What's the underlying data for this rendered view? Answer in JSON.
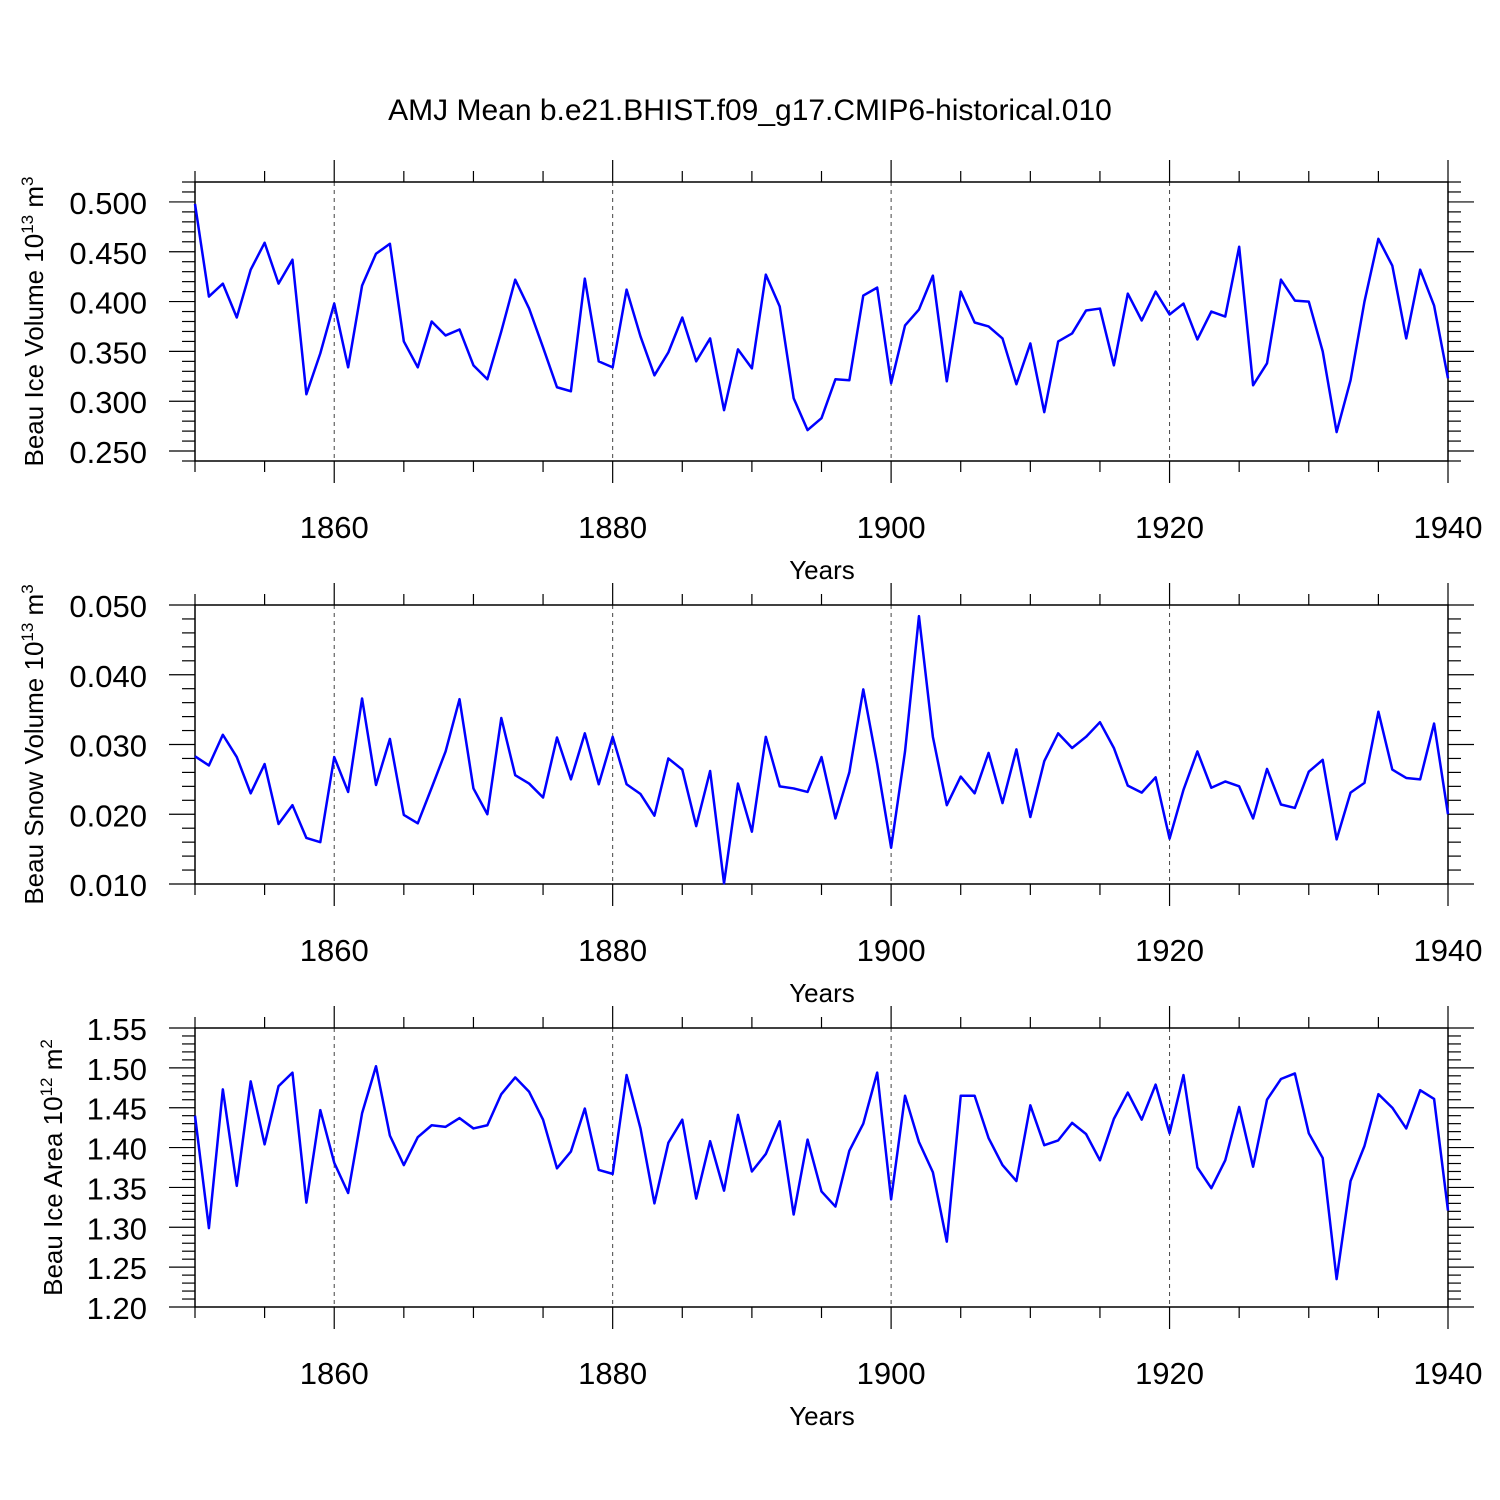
{
  "title": "AMJ Mean b.e21.BHIST.f09_g17.CMIP6-historical.010",
  "line_color": "#0000ff",
  "chart_data": [
    {
      "type": "line",
      "ylabel_main": "Beau Ice Volume 10",
      "ylabel_exp": "13",
      "ylabel_unit": " m",
      "ylabel_unit_exp": "3",
      "xlabel": "Years",
      "xlim": [
        1850,
        1940
      ],
      "ylim": [
        0.24,
        0.52
      ],
      "yticks": [
        0.25,
        0.3,
        0.35,
        0.4,
        0.45,
        0.5
      ],
      "ytick_labels": [
        "0.250",
        "0.300",
        "0.350",
        "0.400",
        "0.450",
        "0.500"
      ],
      "xticks": [
        1860,
        1880,
        1900,
        1920,
        1940
      ],
      "xtick_labels": [
        "1860",
        "1880",
        "1900",
        "1920",
        "1940"
      ],
      "x_start": 1850,
      "values": [
        0.498,
        0.405,
        0.418,
        0.384,
        0.432,
        0.459,
        0.418,
        0.442,
        0.307,
        0.348,
        0.398,
        0.334,
        0.416,
        0.448,
        0.458,
        0.36,
        0.334,
        0.38,
        0.366,
        0.372,
        0.336,
        0.322,
        0.37,
        0.422,
        0.393,
        0.354,
        0.314,
        0.31,
        0.423,
        0.34,
        0.334,
        0.412,
        0.365,
        0.326,
        0.349,
        0.384,
        0.34,
        0.363,
        0.291,
        0.352,
        0.333,
        0.427,
        0.395,
        0.303,
        0.271,
        0.283,
        0.322,
        0.321,
        0.406,
        0.414,
        0.318,
        0.376,
        0.392,
        0.426,
        0.32,
        0.41,
        0.379,
        0.375,
        0.363,
        0.317,
        0.358,
        0.289,
        0.36,
        0.368,
        0.391,
        0.393,
        0.336,
        0.408,
        0.381,
        0.41,
        0.387,
        0.398,
        0.362,
        0.39,
        0.385,
        0.455,
        0.316,
        0.338,
        0.422,
        0.401,
        0.4,
        0.35,
        0.269,
        0.321,
        0.4,
        0.463,
        0.436,
        0.363,
        0.432,
        0.396,
        0.323
      ]
    },
    {
      "type": "line",
      "ylabel_main": "Beau Snow Volume 10",
      "ylabel_exp": "13",
      "ylabel_unit": " m",
      "ylabel_unit_exp": "3",
      "xlabel": "Years",
      "xlim": [
        1850,
        1940
      ],
      "ylim": [
        0.01,
        0.05
      ],
      "yticks": [
        0.01,
        0.02,
        0.03,
        0.04,
        0.05
      ],
      "ytick_labels": [
        "0.010",
        "0.020",
        "0.030",
        "0.040",
        "0.050"
      ],
      "xticks": [
        1860,
        1880,
        1900,
        1920,
        1940
      ],
      "xtick_labels": [
        "1860",
        "1880",
        "1900",
        "1920",
        "1940"
      ],
      "x_start": 1850,
      "values": [
        0.0283,
        0.027,
        0.0314,
        0.0282,
        0.023,
        0.0272,
        0.0186,
        0.0213,
        0.0166,
        0.016,
        0.0282,
        0.0232,
        0.0366,
        0.0242,
        0.0308,
        0.0199,
        0.0187,
        0.0238,
        0.029,
        0.0365,
        0.0237,
        0.02,
        0.0338,
        0.0256,
        0.0244,
        0.0224,
        0.031,
        0.025,
        0.0316,
        0.0243,
        0.0311,
        0.0243,
        0.0229,
        0.0198,
        0.028,
        0.0264,
        0.0183,
        0.0262,
        0.0101,
        0.0244,
        0.0175,
        0.0311,
        0.024,
        0.0237,
        0.0232,
        0.0282,
        0.0194,
        0.026,
        0.0379,
        0.0272,
        0.0152,
        0.029,
        0.0484,
        0.0311,
        0.0213,
        0.0254,
        0.023,
        0.0288,
        0.0216,
        0.0293,
        0.0196,
        0.0276,
        0.0316,
        0.0295,
        0.0311,
        0.0332,
        0.0295,
        0.0241,
        0.0231,
        0.0253,
        0.0165,
        0.0235,
        0.029,
        0.0238,
        0.0247,
        0.024,
        0.0194,
        0.0265,
        0.0214,
        0.0209,
        0.0261,
        0.0278,
        0.0164,
        0.0231,
        0.0245,
        0.0347,
        0.0264,
        0.0252,
        0.025,
        0.033,
        0.02
      ]
    },
    {
      "type": "line",
      "ylabel_main": "Beau Ice Area 10",
      "ylabel_exp": "12",
      "ylabel_unit": " m",
      "ylabel_unit_exp": "2",
      "xlabel": "Years",
      "xlim": [
        1850,
        1940
      ],
      "ylim": [
        1.2,
        1.55
      ],
      "yticks": [
        1.2,
        1.25,
        1.3,
        1.35,
        1.4,
        1.45,
        1.5,
        1.55
      ],
      "ytick_labels": [
        "1.20",
        "1.25",
        "1.30",
        "1.35",
        "1.40",
        "1.45",
        "1.50",
        "1.55"
      ],
      "xticks": [
        1860,
        1880,
        1900,
        1920,
        1940
      ],
      "xtick_labels": [
        "1860",
        "1880",
        "1900",
        "1920",
        "1940"
      ],
      "x_start": 1850,
      "values": [
        1.44,
        1.299,
        1.473,
        1.352,
        1.483,
        1.404,
        1.477,
        1.494,
        1.331,
        1.447,
        1.381,
        1.343,
        1.443,
        1.502,
        1.415,
        1.378,
        1.413,
        1.428,
        1.426,
        1.437,
        1.424,
        1.428,
        1.467,
        1.488,
        1.47,
        1.435,
        1.374,
        1.395,
        1.449,
        1.372,
        1.367,
        1.491,
        1.424,
        1.33,
        1.406,
        1.435,
        1.336,
        1.408,
        1.346,
        1.441,
        1.37,
        1.392,
        1.433,
        1.316,
        1.41,
        1.345,
        1.326,
        1.396,
        1.43,
        1.494,
        1.335,
        1.465,
        1.407,
        1.369,
        1.282,
        1.465,
        1.465,
        1.412,
        1.378,
        1.358,
        1.453,
        1.403,
        1.409,
        1.431,
        1.417,
        1.384,
        1.436,
        1.469,
        1.435,
        1.479,
        1.418,
        1.491,
        1.375,
        1.349,
        1.384,
        1.451,
        1.376,
        1.46,
        1.486,
        1.493,
        1.418,
        1.387,
        1.235,
        1.358,
        1.402,
        1.467,
        1.45,
        1.424,
        1.472,
        1.461,
        1.321
      ]
    }
  ]
}
